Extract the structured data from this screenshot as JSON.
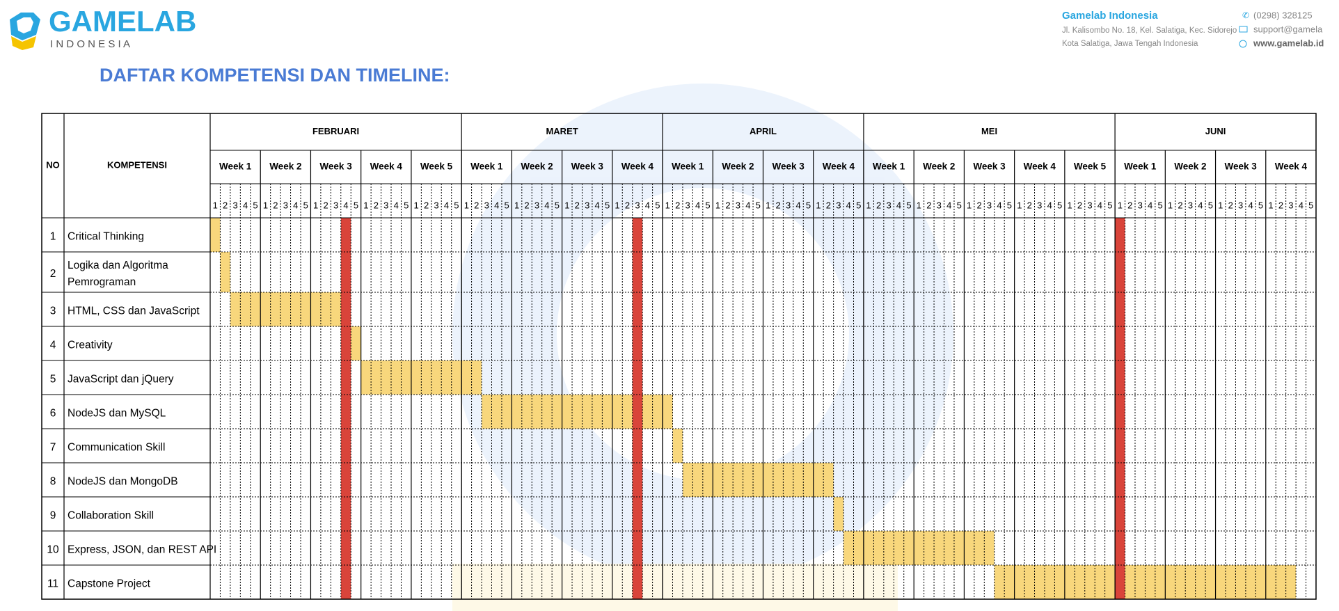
{
  "header": {
    "logo": "GAMELAB",
    "logo_sub": "I N D O N E S I A",
    "company": "Gamelab Indonesia",
    "address": [
      "Jl. Kalisombo No. 18, Kel. Salatiga, Kec. Sidorejo",
      "Kota Salatiga, Jawa Tengah Indonesia"
    ],
    "phone": "(0298) 328125",
    "email": "support@gamela",
    "website": "www.gamelab.id"
  },
  "title": "DAFTAR KOMPETENSI DAN TIMELINE:",
  "table": {
    "col_no": "NO",
    "col_name": "KOMPETENSI",
    "months": [
      {
        "name": "FEBRUARI",
        "weeks": [
          "Week 1",
          "Week 2",
          "Week 3",
          "Week 4",
          "Week 5"
        ]
      },
      {
        "name": "MARET",
        "weeks": [
          "Week 1",
          "Week 2",
          "Week 3",
          "Week 4"
        ]
      },
      {
        "name": "APRIL",
        "weeks": [
          "Week 1",
          "Week 2",
          "Week 3",
          "Week 4"
        ]
      },
      {
        "name": "MEI",
        "weeks": [
          "Week 1",
          "Week 2",
          "Week 3",
          "Week 4",
          "Week 5"
        ]
      },
      {
        "name": "JUNI",
        "weeks": [
          "Week 1",
          "Week 2",
          "Week 3",
          "Week 4"
        ]
      }
    ],
    "days": [
      "1",
      "2",
      "3",
      "4",
      "5"
    ],
    "rows": [
      {
        "no": "1",
        "name": [
          "Critical Thinking"
        ],
        "start": 0,
        "end": 0
      },
      {
        "no": "2",
        "name": [
          "Logika dan Algoritma",
          "Pemrograman"
        ],
        "start": 1,
        "end": 1
      },
      {
        "no": "3",
        "name": [
          "HTML, CSS dan JavaScript"
        ],
        "start": 2,
        "end": 12
      },
      {
        "no": "4",
        "name": [
          "Creativity"
        ],
        "start": 14,
        "end": 14
      },
      {
        "no": "5",
        "name": [
          "JavaScript dan jQuery"
        ],
        "start": 15,
        "end": 26
      },
      {
        "no": "6",
        "name": [
          "NodeJS dan MySQL"
        ],
        "start": 27,
        "end": 45
      },
      {
        "no": "7",
        "name": [
          "Communication Skill"
        ],
        "start": 46,
        "end": 46
      },
      {
        "no": "8",
        "name": [
          "NodeJS dan MongoDB"
        ],
        "start": 47,
        "end": 61
      },
      {
        "no": "9",
        "name": [
          "Collaboration Skill"
        ],
        "start": 62,
        "end": 62
      },
      {
        "no": "10",
        "name": [
          "Express, JSON, dan REST API"
        ],
        "start": 63,
        "end": 77
      },
      {
        "no": "11",
        "name": [
          "Capstone Project"
        ],
        "start": 78,
        "end": 107
      }
    ],
    "markers": [
      13,
      42,
      90
    ]
  }
}
